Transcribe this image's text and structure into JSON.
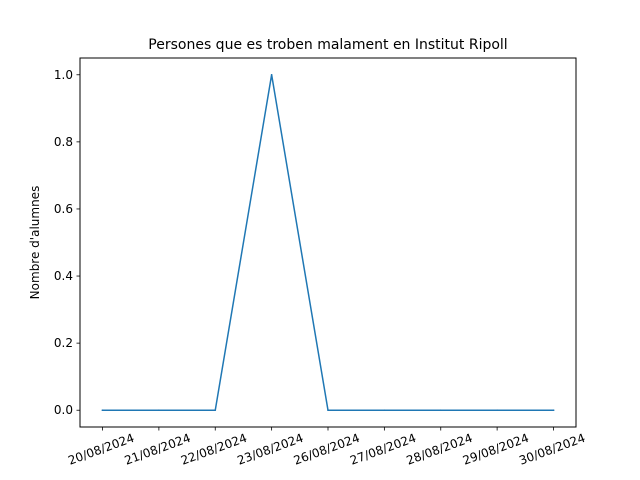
{
  "chart_data": {
    "type": "line",
    "title": "Persones que es troben malament en Institut Ripoll",
    "xlabel": "",
    "ylabel": "Nombre d'alumnes",
    "categories": [
      "20/08/2024",
      "21/08/2024",
      "22/08/2024",
      "23/08/2024",
      "26/08/2024",
      "27/08/2024",
      "28/08/2024",
      "29/08/2024",
      "30/08/2024"
    ],
    "series": [
      {
        "values": [
          0,
          0,
          0,
          1,
          0,
          0,
          0,
          0,
          0
        ],
        "color": "#1f77b4"
      }
    ],
    "ylim": [
      -0.05,
      1.05
    ],
    "yticks": [
      0.0,
      0.2,
      0.4,
      0.6,
      0.8,
      1.0
    ],
    "ytick_labels": [
      "0.0",
      "0.2",
      "0.4",
      "0.6",
      "0.8",
      "1.0"
    ],
    "grid": false,
    "legend": "none"
  }
}
